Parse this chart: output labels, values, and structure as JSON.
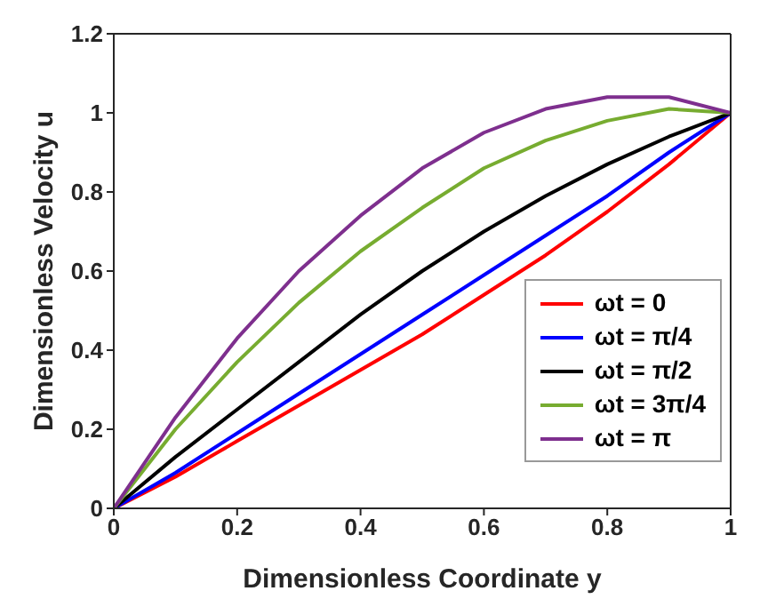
{
  "chart_data": {
    "type": "line",
    "xlabel": "Dimensionless Coordinate y",
    "ylabel": "Dimensionless Velocity u",
    "x": [
      0,
      0.1,
      0.2,
      0.3,
      0.4,
      0.5,
      0.6,
      0.7,
      0.8,
      0.9,
      1
    ],
    "series": [
      {
        "name": "ωt = 0",
        "color": "#ff0000",
        "values": [
          0,
          0.08,
          0.17,
          0.26,
          0.35,
          0.44,
          0.54,
          0.64,
          0.75,
          0.87,
          1
        ]
      },
      {
        "name": "ωt = π/4",
        "color": "#0000ff",
        "values": [
          0,
          0.09,
          0.19,
          0.29,
          0.39,
          0.49,
          0.59,
          0.69,
          0.79,
          0.9,
          1
        ]
      },
      {
        "name": "ωt = π/2",
        "color": "#000000",
        "values": [
          0,
          0.13,
          0.25,
          0.37,
          0.49,
          0.6,
          0.7,
          0.79,
          0.87,
          0.94,
          1
        ]
      },
      {
        "name": "ωt = 3π/4",
        "color": "#77ac30",
        "values": [
          0,
          0.2,
          0.37,
          0.52,
          0.65,
          0.76,
          0.86,
          0.93,
          0.98,
          1.01,
          1
        ]
      },
      {
        "name": "ωt = π",
        "color": "#7e2f8e",
        "values": [
          0,
          0.23,
          0.43,
          0.6,
          0.74,
          0.86,
          0.95,
          1.01,
          1.04,
          1.04,
          1
        ]
      }
    ],
    "xlim": [
      0,
      1
    ],
    "xticks": [
      0,
      0.2,
      0.4,
      0.6,
      0.8,
      1
    ],
    "ylim": [
      0,
      1.2
    ],
    "yticks": [
      0,
      0.2,
      0.4,
      0.6,
      0.8,
      1,
      1.2
    ],
    "grid": false,
    "legend": "bottom right",
    "marker": "none",
    "line_style": "solid"
  }
}
